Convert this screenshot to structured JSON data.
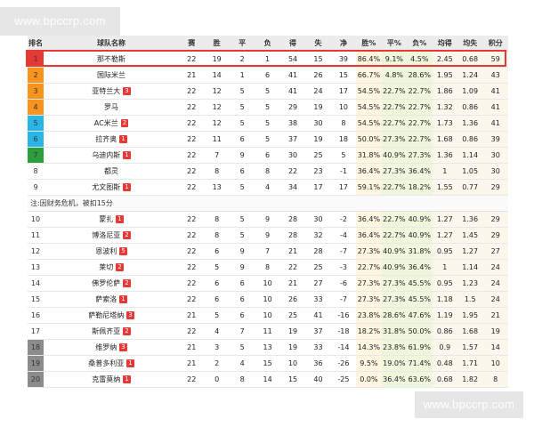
{
  "watermark": {
    "top": "www.bpccrp.com",
    "bottom": "www.bpccrp.com"
  },
  "columns": [
    "排名",
    "球队名称",
    "赛",
    "胜",
    "平",
    "负",
    "得",
    "失",
    "净",
    "胜%",
    "平%",
    "负%",
    "均得",
    "均失",
    "积分"
  ],
  "note": "注:因财务危机，被扣15分",
  "top_rows": [
    {
      "rank": "1",
      "team": "那不勒斯",
      "penalty": "",
      "cells": [
        "22",
        "19",
        "2",
        "1",
        "54",
        "15",
        "39",
        "86.4%",
        "9.1%",
        "4.5%",
        "2.45",
        "0.68",
        "59"
      ]
    },
    {
      "rank": "2",
      "team": "国际米兰",
      "penalty": "",
      "cells": [
        "21",
        "14",
        "1",
        "6",
        "41",
        "26",
        "15",
        "66.7%",
        "4.8%",
        "28.6%",
        "1.95",
        "1.24",
        "43"
      ]
    },
    {
      "rank": "3",
      "team": "亚特兰大",
      "penalty": "3",
      "cells": [
        "22",
        "12",
        "5",
        "5",
        "41",
        "24",
        "17",
        "54.5%",
        "22.7%",
        "22.7%",
        "1.86",
        "1.09",
        "41"
      ]
    },
    {
      "rank": "4",
      "team": "罗马",
      "penalty": "",
      "cells": [
        "22",
        "12",
        "5",
        "5",
        "29",
        "19",
        "10",
        "54.5%",
        "22.7%",
        "22.7%",
        "1.32",
        "0.86",
        "41"
      ]
    },
    {
      "rank": "5",
      "team": "AC米兰",
      "penalty": "2",
      "cells": [
        "22",
        "12",
        "5",
        "5",
        "38",
        "30",
        "8",
        "54.5%",
        "22.7%",
        "22.7%",
        "1.73",
        "1.36",
        "41"
      ]
    },
    {
      "rank": "6",
      "team": "拉齐奥",
      "penalty": "1",
      "cells": [
        "22",
        "11",
        "6",
        "5",
        "37",
        "19",
        "18",
        "50.0%",
        "27.3%",
        "22.7%",
        "1.68",
        "0.86",
        "39"
      ]
    },
    {
      "rank": "7",
      "team": "乌迪内斯",
      "penalty": "1",
      "cells": [
        "22",
        "7",
        "9",
        "6",
        "30",
        "25",
        "5",
        "31.8%",
        "40.9%",
        "27.3%",
        "1.36",
        "1.14",
        "30"
      ]
    },
    {
      "rank": "8",
      "team": "都灵",
      "penalty": "",
      "cells": [
        "22",
        "8",
        "6",
        "8",
        "22",
        "23",
        "-1",
        "36.4%",
        "27.3%",
        "36.4%",
        "1",
        "1.05",
        "30"
      ]
    },
    {
      "rank": "9",
      "team": "尤文图斯",
      "penalty": "1",
      "cells": [
        "22",
        "13",
        "5",
        "4",
        "34",
        "17",
        "17",
        "59.1%",
        "22.7%",
        "18.2%",
        "1.55",
        "0.77",
        "29"
      ]
    }
  ],
  "bottom_rows": [
    {
      "rank": "10",
      "team": "蒙扎",
      "penalty": "1",
      "cells": [
        "22",
        "8",
        "5",
        "9",
        "28",
        "30",
        "-2",
        "36.4%",
        "22.7%",
        "40.9%",
        "1.27",
        "1.36",
        "29"
      ]
    },
    {
      "rank": "11",
      "team": "博洛尼亚",
      "penalty": "2",
      "cells": [
        "22",
        "8",
        "5",
        "9",
        "28",
        "32",
        "-4",
        "36.4%",
        "22.7%",
        "40.9%",
        "1.27",
        "1.45",
        "29"
      ]
    },
    {
      "rank": "12",
      "team": "恩波利",
      "penalty": "5",
      "cells": [
        "22",
        "6",
        "9",
        "7",
        "21",
        "28",
        "-7",
        "27.3%",
        "40.9%",
        "31.8%",
        "0.95",
        "1.27",
        "27"
      ]
    },
    {
      "rank": "13",
      "team": "莱切",
      "penalty": "2",
      "cells": [
        "22",
        "5",
        "9",
        "8",
        "22",
        "25",
        "-3",
        "22.7%",
        "40.9%",
        "36.4%",
        "1",
        "1.14",
        "24"
      ]
    },
    {
      "rank": "14",
      "team": "佛罗伦萨",
      "penalty": "2",
      "cells": [
        "22",
        "6",
        "6",
        "10",
        "21",
        "27",
        "-6",
        "27.3%",
        "27.3%",
        "45.5%",
        "0.95",
        "1.23",
        "24"
      ]
    },
    {
      "rank": "15",
      "team": "萨索洛",
      "penalty": "1",
      "cells": [
        "22",
        "6",
        "6",
        "10",
        "26",
        "33",
        "-7",
        "27.3%",
        "27.3%",
        "45.5%",
        "1.18",
        "1.5",
        "24"
      ]
    },
    {
      "rank": "16",
      "team": "萨勒尼塔纳",
      "penalty": "3",
      "cells": [
        "21",
        "5",
        "6",
        "10",
        "25",
        "41",
        "-16",
        "23.8%",
        "28.6%",
        "47.6%",
        "1.19",
        "1.95",
        "21"
      ]
    },
    {
      "rank": "17",
      "team": "斯佩齐亚",
      "penalty": "2",
      "cells": [
        "22",
        "4",
        "7",
        "11",
        "19",
        "37",
        "-18",
        "18.2%",
        "31.8%",
        "50.0%",
        "0.86",
        "1.68",
        "19"
      ]
    },
    {
      "rank": "18",
      "team": "维罗纳",
      "penalty": "3",
      "cells": [
        "21",
        "3",
        "5",
        "13",
        "19",
        "33",
        "-14",
        "14.3%",
        "23.8%",
        "61.9%",
        "0.9",
        "1.57",
        "14"
      ]
    },
    {
      "rank": "19",
      "team": "桑普多利亚",
      "penalty": "1",
      "cells": [
        "21",
        "2",
        "4",
        "15",
        "10",
        "36",
        "-26",
        "9.5%",
        "19.0%",
        "71.4%",
        "0.48",
        "1.71",
        "10"
      ]
    },
    {
      "rank": "20",
      "team": "克雷莫纳",
      "penalty": "1",
      "cells": [
        "22",
        "0",
        "8",
        "14",
        "15",
        "40",
        "-25",
        "0.0%",
        "36.4%",
        "63.6%",
        "0.68",
        "1.82",
        "8"
      ]
    }
  ]
}
